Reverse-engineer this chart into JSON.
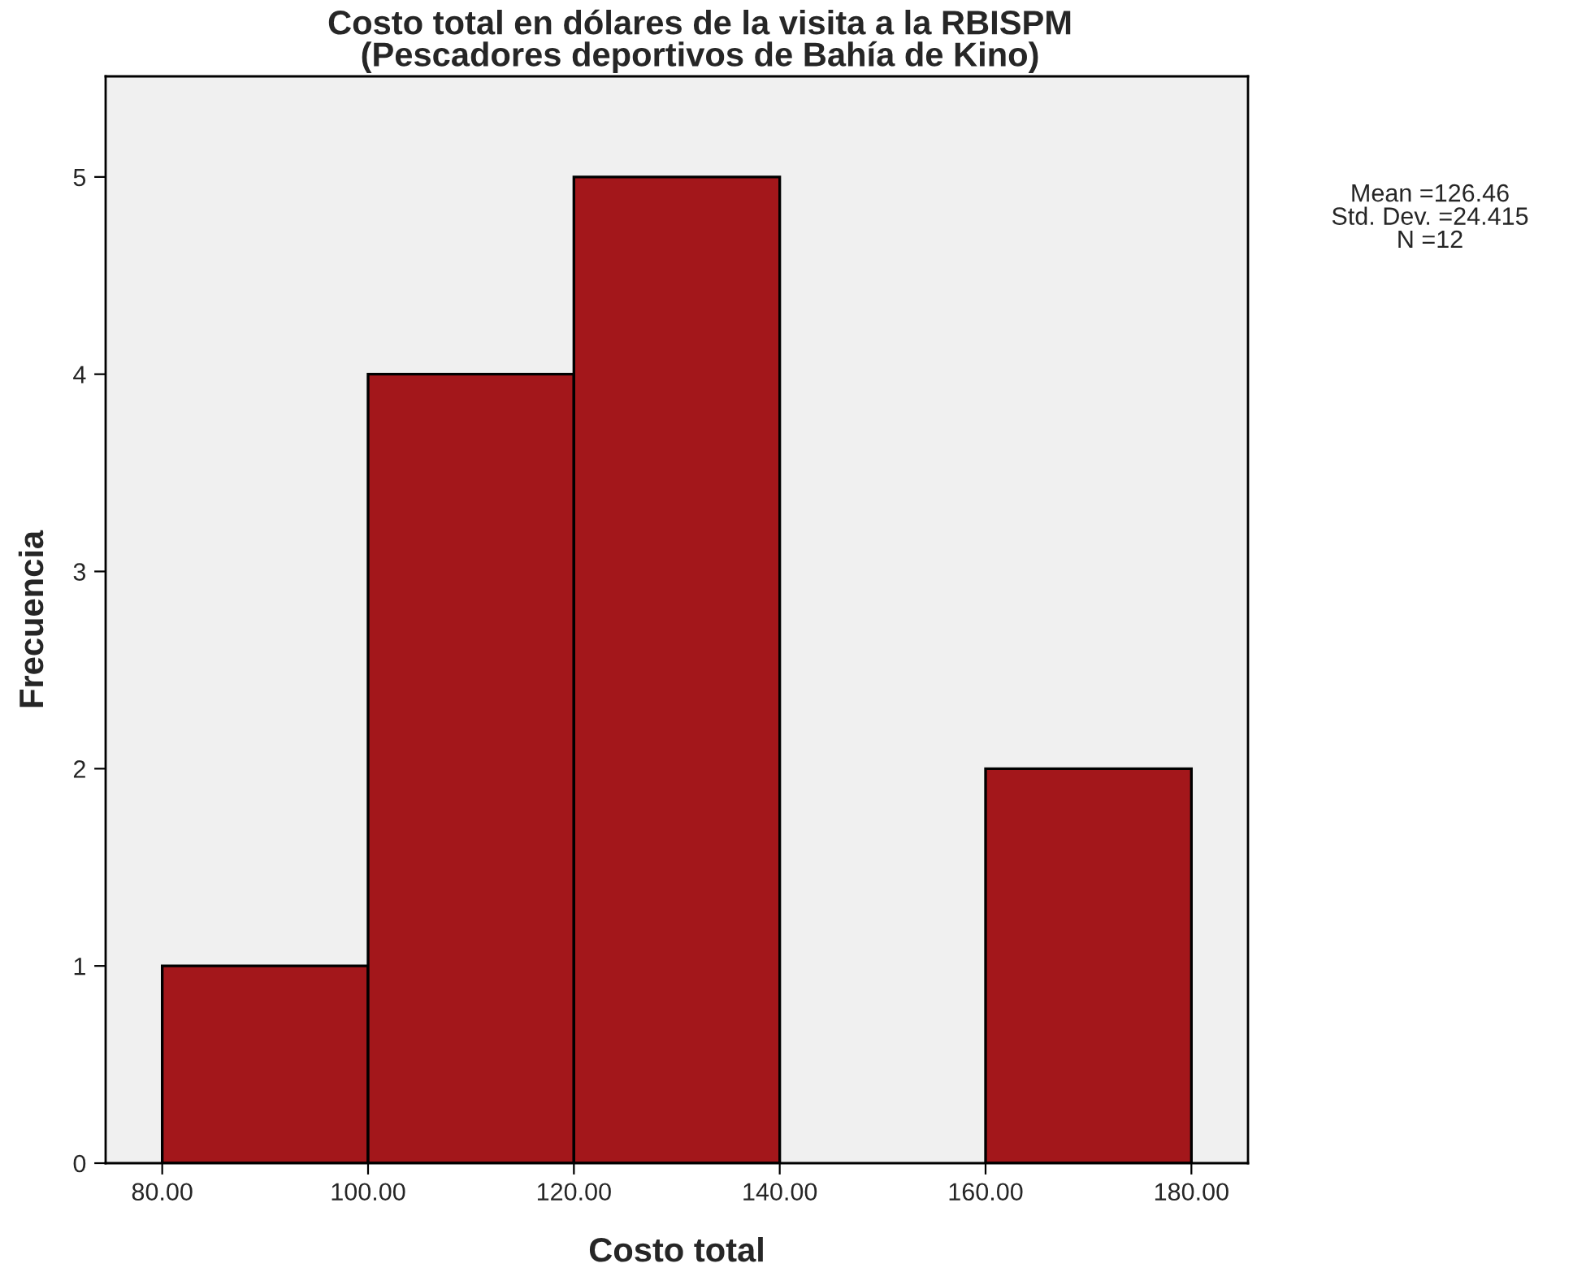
{
  "chart_data": {
    "type": "histogram",
    "title": "Costo total en dólares de la visita a la RBISPM\n(Pescadores deportivos de Bahía de Kino)",
    "xlabel": "Costo total",
    "ylabel": "Frecuencia",
    "bins": [
      80,
      100,
      120,
      140,
      160,
      180
    ],
    "values": [
      1,
      4,
      5,
      0,
      2
    ],
    "color": "#a3171b",
    "xlim": [
      74.5,
      185.5
    ],
    "xticks": [
      {
        "value": 80,
        "label": "80.00"
      },
      {
        "value": 100,
        "label": "100.00"
      },
      {
        "value": 120,
        "label": "120.00"
      },
      {
        "value": 140,
        "label": "140.00"
      },
      {
        "value": 160,
        "label": "160.00"
      },
      {
        "value": 180,
        "label": "180.00"
      }
    ],
    "ylim": [
      0,
      5.51
    ],
    "yticks": [
      0,
      1,
      2,
      3,
      4,
      5
    ],
    "annotations": [
      "Mean =126.46\nStd. Dev. =24.415\nN =12"
    ]
  }
}
